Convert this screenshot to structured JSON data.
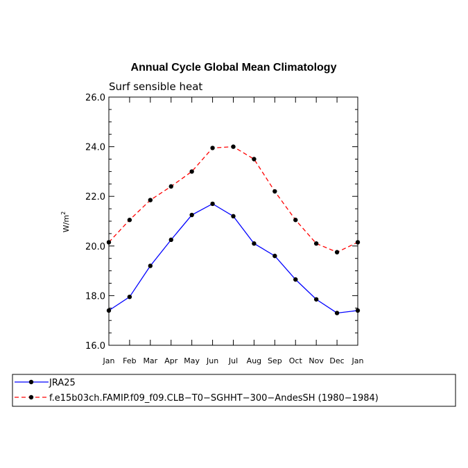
{
  "chart_data": {
    "type": "line",
    "title": "Annual Cycle Global Mean Climatology",
    "subtitle": "Surf sensible heat",
    "ylabel": "W/m",
    "ylabel_sup": "2",
    "categories": [
      "Jan",
      "Feb",
      "Mar",
      "Apr",
      "May",
      "Jun",
      "Jul",
      "Aug",
      "Sep",
      "Oct",
      "Nov",
      "Dec",
      "Jan"
    ],
    "ylim": [
      16.0,
      26.0
    ],
    "yticks": [
      "16.0",
      "18.0",
      "20.0",
      "22.0",
      "24.0",
      "26.0"
    ],
    "series": [
      {
        "name": "JRA25",
        "color": "#0000ff",
        "dash": "solid",
        "values": [
          17.4,
          17.95,
          19.2,
          20.25,
          21.25,
          21.7,
          21.2,
          20.1,
          19.6,
          18.65,
          17.85,
          17.3,
          17.4
        ]
      },
      {
        "name": "f.e15b03ch.FAMIP.f09_f09.CLB−T0−SGHHT−300−AndesSH (1980−1984)",
        "color": "#ff0000",
        "dash": "dashed",
        "values": [
          20.15,
          21.05,
          21.85,
          22.4,
          23.0,
          23.95,
          24.0,
          23.5,
          22.2,
          21.05,
          20.1,
          19.75,
          20.15
        ]
      }
    ]
  }
}
